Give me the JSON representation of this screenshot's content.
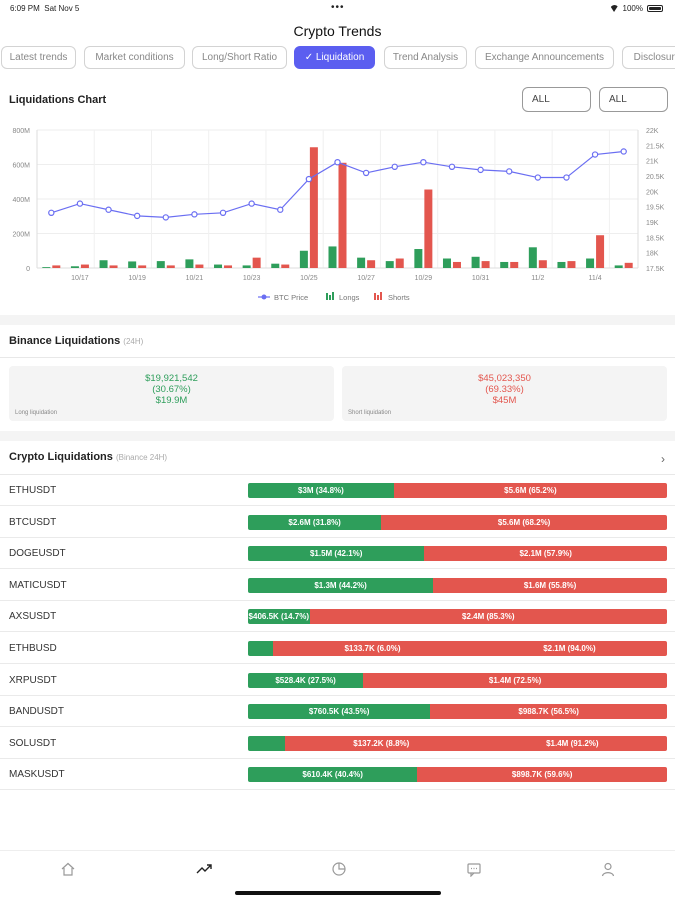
{
  "status": {
    "time": "6:09 PM",
    "date": "Sat Nov 5",
    "battery": "100%"
  },
  "title": "Crypto Trends",
  "tabs": [
    "Latest trends",
    "Market conditions",
    "Long/Short Ratio",
    "✓ Liquidation",
    "Trend Analysis",
    "Exchange Announcements",
    "Disclosure"
  ],
  "active_tab": 3,
  "chart_section": {
    "title": "Liquidations Chart",
    "select1": "ALL",
    "select2": "ALL"
  },
  "chart_data": {
    "type": "bar",
    "categories": [
      "10/16",
      "10/17",
      "10/18",
      "10/19",
      "10/20",
      "10/21",
      "10/22",
      "10/23",
      "10/24",
      "10/25",
      "10/26",
      "10/27",
      "10/28",
      "10/29",
      "10/30",
      "10/31",
      "11/1",
      "11/2",
      "11/3",
      "11/4",
      "11/5"
    ],
    "x_tick_labels": [
      "10/17",
      "10/19",
      "10/21",
      "10/23",
      "10/25",
      "10/27",
      "10/29",
      "10/31",
      "11/2",
      "11/4"
    ],
    "series": [
      {
        "name": "Longs",
        "color": "#2e9e5b",
        "values": [
          5,
          10,
          45,
          38,
          40,
          50,
          20,
          15,
          25,
          100,
          125,
          60,
          40,
          110,
          55,
          65,
          35,
          120,
          35,
          55,
          15
        ]
      },
      {
        "name": "Shorts",
        "color": "#e3564e",
        "values": [
          15,
          20,
          15,
          15,
          15,
          20,
          15,
          60,
          20,
          700,
          610,
          45,
          55,
          455,
          35,
          40,
          35,
          45,
          40,
          190,
          30
        ]
      }
    ],
    "line": {
      "name": "BTC Price",
      "color": "#6a6ef2",
      "values": [
        19300,
        19600,
        19400,
        19200,
        19150,
        19250,
        19300,
        19600,
        19400,
        20400,
        20950,
        20600,
        20800,
        20950,
        20800,
        20700,
        20650,
        20450,
        20450,
        21200,
        21300
      ]
    },
    "y_left_ticks": [
      "0",
      "200M",
      "400M",
      "600M",
      "800M"
    ],
    "y_left_range": [
      0,
      800
    ],
    "y_right_ticks": [
      "17.5K",
      "18K",
      "18.5K",
      "19K",
      "19.5K",
      "20K",
      "20.5K",
      "21K",
      "21.5K",
      "22K"
    ],
    "y_right_range": [
      17500,
      22000
    ],
    "legend": [
      "BTC Price",
      "Longs",
      "Shorts"
    ]
  },
  "binance": {
    "title": "Binance Liquidations",
    "sub": "(24H)",
    "long": {
      "amount": "$19,921,542",
      "pct": "(30.67%)",
      "short": "$19.9M",
      "label": "Long liquidation"
    },
    "short": {
      "amount": "$45,023,350",
      "pct": "(69.33%)",
      "short": "$45M",
      "label": "Short liquidation"
    }
  },
  "crypto": {
    "title": "Crypto Liquidations",
    "sub": "(Binance 24H)",
    "rows": [
      {
        "symbol": "ETHUSDT",
        "long_pct": 34.8,
        "long": "$3M (34.8%)",
        "short": "$5.6M (65.2%)"
      },
      {
        "symbol": "BTCUSDT",
        "long_pct": 31.8,
        "long": "$2.6M (31.8%)",
        "short": "$5.6M (68.2%)"
      },
      {
        "symbol": "DOGEUSDT",
        "long_pct": 42.1,
        "long": "$1.5M (42.1%)",
        "short": "$2.1M (57.9%)"
      },
      {
        "symbol": "MATICUSDT",
        "long_pct": 44.2,
        "long": "$1.3M (44.2%)",
        "short": "$1.6M (55.8%)"
      },
      {
        "symbol": "AXSUSDT",
        "long_pct": 14.7,
        "long": "$406.5K (14.7%)",
        "short": "$2.4M (85.3%)"
      },
      {
        "symbol": "ETHBUSD",
        "long_pct": 6.0,
        "long": "$133.7K (6.0%)",
        "short": "$2.1M (94.0%)"
      },
      {
        "symbol": "XRPUSDT",
        "long_pct": 27.5,
        "long": "$528.4K (27.5%)",
        "short": "$1.4M (72.5%)"
      },
      {
        "symbol": "BANDUSDT",
        "long_pct": 43.5,
        "long": "$760.5K (43.5%)",
        "short": "$988.7K (56.5%)"
      },
      {
        "symbol": "SOLUSDT",
        "long_pct": 8.8,
        "long": "$137.2K (8.8%)",
        "short": "$1.4M (91.2%)"
      },
      {
        "symbol": "MASKUSDT",
        "long_pct": 40.4,
        "long": "$610.4K (40.4%)",
        "short": "$898.7K (59.6%)"
      }
    ]
  },
  "bottom_nav": [
    "home-icon",
    "trend-icon",
    "chart-pie-icon",
    "message-icon",
    "user-icon"
  ]
}
